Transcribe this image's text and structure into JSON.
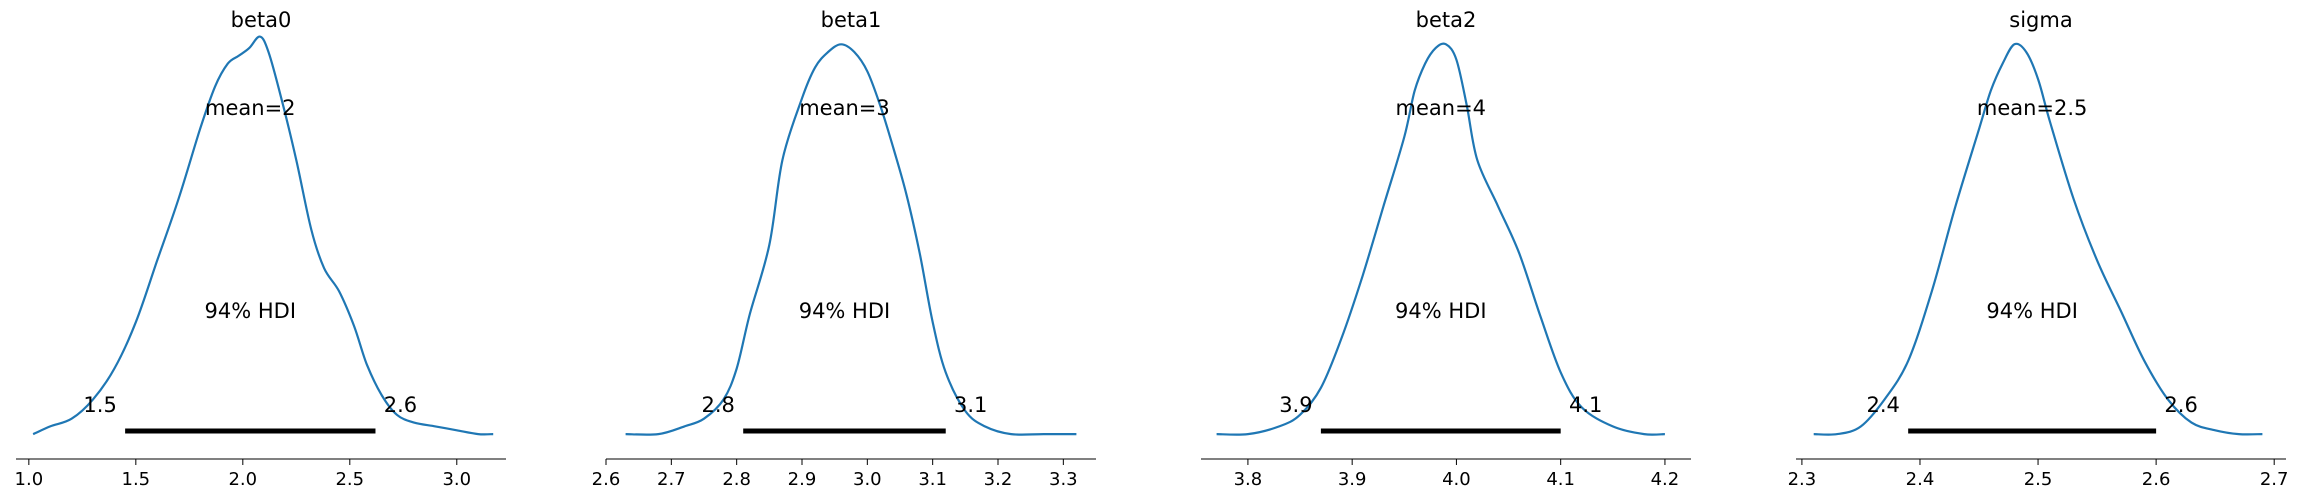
{
  "chart_data": [
    {
      "type": "line",
      "title": "beta0",
      "mean_label": "mean=2",
      "hdi_label": "94% HDI",
      "hdi": [
        1.45,
        2.62
      ],
      "hdi_low_label": "1.5",
      "hdi_high_label": "2.6",
      "xlim": [
        0.94,
        3.23
      ],
      "xticks": [
        1.0,
        1.5,
        2.0,
        2.5,
        3.0
      ],
      "xtick_labels": [
        "1.0",
        "1.5",
        "2.0",
        "2.5",
        "3.0"
      ],
      "x": [
        1.02,
        1.1,
        1.2,
        1.3,
        1.4,
        1.5,
        1.6,
        1.7,
        1.8,
        1.87,
        1.93,
        1.98,
        2.03,
        2.08,
        2.12,
        2.18,
        2.25,
        2.32,
        2.38,
        2.45,
        2.52,
        2.58,
        2.65,
        2.72,
        2.8,
        2.9,
        3.0,
        3.1,
        3.17
      ],
      "y": [
        0.01,
        0.03,
        0.05,
        0.1,
        0.18,
        0.3,
        0.46,
        0.62,
        0.8,
        0.91,
        0.97,
        0.99,
        1.01,
        1.04,
        1.0,
        0.88,
        0.72,
        0.54,
        0.44,
        0.38,
        0.29,
        0.19,
        0.11,
        0.06,
        0.04,
        0.03,
        0.02,
        0.01,
        0.01
      ],
      "color": "#1f77b4"
    },
    {
      "type": "line",
      "title": "beta1",
      "mean_label": "mean=3",
      "hdi_label": "94% HDI",
      "hdi": [
        2.81,
        3.12
      ],
      "hdi_low_label": "2.8",
      "hdi_high_label": "3.1",
      "xlim": [
        2.6,
        3.35
      ],
      "xticks": [
        2.6,
        2.7,
        2.8,
        2.9,
        3.0,
        3.1,
        3.2,
        3.3
      ],
      "xtick_labels": [
        "2.6",
        "2.7",
        "2.8",
        "2.9",
        "3.0",
        "3.1",
        "3.2",
        "3.3"
      ],
      "x": [
        2.63,
        2.68,
        2.72,
        2.75,
        2.78,
        2.8,
        2.82,
        2.85,
        2.87,
        2.9,
        2.92,
        2.94,
        2.96,
        2.98,
        3.0,
        3.02,
        3.04,
        3.06,
        3.08,
        3.1,
        3.12,
        3.15,
        3.18,
        3.22,
        3.27,
        3.32
      ],
      "y": [
        0.01,
        0.01,
        0.03,
        0.05,
        0.1,
        0.18,
        0.32,
        0.5,
        0.72,
        0.88,
        0.96,
        1.0,
        1.02,
        1.0,
        0.95,
        0.86,
        0.75,
        0.63,
        0.48,
        0.3,
        0.17,
        0.07,
        0.03,
        0.01,
        0.01,
        0.01
      ],
      "color": "#1f77b4"
    },
    {
      "type": "line",
      "title": "beta2",
      "mean_label": "mean=4",
      "hdi_label": "94% HDI",
      "hdi": [
        3.87,
        4.1
      ],
      "hdi_low_label": "3.9",
      "hdi_high_label": "4.1",
      "xlim": [
        3.755,
        4.225
      ],
      "xticks": [
        3.8,
        3.9,
        4.0,
        4.1,
        4.2
      ],
      "xtick_labels": [
        "3.8",
        "3.9",
        "4.0",
        "4.1",
        "4.2"
      ],
      "x": [
        3.77,
        3.8,
        3.83,
        3.85,
        3.87,
        3.89,
        3.91,
        3.93,
        3.95,
        3.96,
        3.97,
        3.98,
        3.99,
        4.0,
        4.01,
        4.02,
        4.04,
        4.06,
        4.08,
        4.1,
        4.12,
        4.15,
        4.18,
        4.2
      ],
      "y": [
        0.01,
        0.01,
        0.03,
        0.06,
        0.13,
        0.26,
        0.42,
        0.6,
        0.78,
        0.9,
        0.97,
        1.01,
        1.02,
        0.98,
        0.86,
        0.72,
        0.6,
        0.48,
        0.32,
        0.17,
        0.08,
        0.03,
        0.01,
        0.01
      ],
      "color": "#1f77b4"
    },
    {
      "type": "line",
      "title": "sigma",
      "mean_label": "mean=2.5",
      "hdi_label": "94% HDI",
      "hdi": [
        2.39,
        2.6
      ],
      "hdi_low_label": "2.4",
      "hdi_high_label": "2.6",
      "xlim": [
        2.295,
        2.71
      ],
      "xticks": [
        2.3,
        2.4,
        2.5,
        2.6,
        2.7
      ],
      "xtick_labels": [
        "2.3",
        "2.4",
        "2.5",
        "2.6",
        "2.7"
      ],
      "x": [
        2.31,
        2.33,
        2.35,
        2.37,
        2.39,
        2.41,
        2.43,
        2.45,
        2.46,
        2.47,
        2.48,
        2.49,
        2.5,
        2.51,
        2.53,
        2.55,
        2.57,
        2.59,
        2.61,
        2.63,
        2.65,
        2.67,
        2.69
      ],
      "y": [
        0.01,
        0.01,
        0.03,
        0.1,
        0.2,
        0.38,
        0.6,
        0.8,
        0.9,
        0.97,
        1.02,
        1.0,
        0.93,
        0.82,
        0.62,
        0.46,
        0.33,
        0.2,
        0.1,
        0.04,
        0.02,
        0.01,
        0.01
      ],
      "color": "#1f77b4"
    }
  ]
}
